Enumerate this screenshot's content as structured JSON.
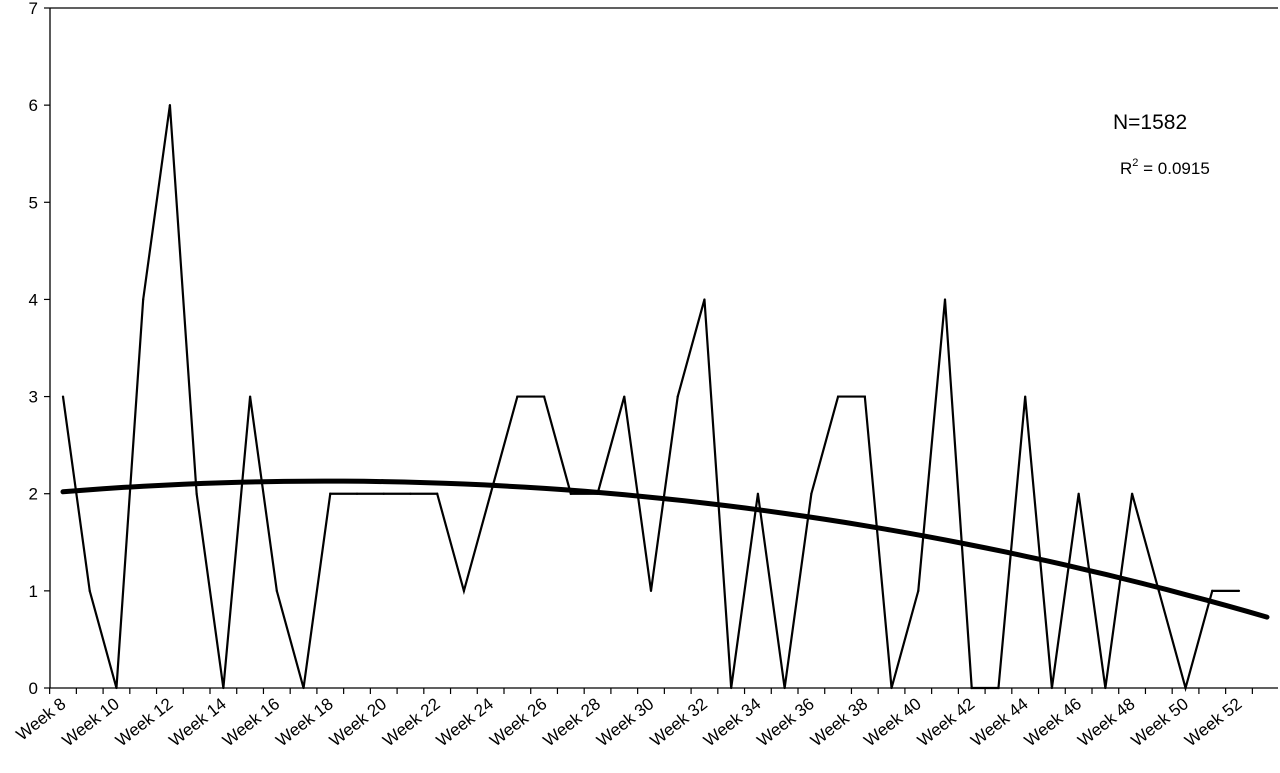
{
  "chart_data": {
    "type": "line",
    "title": "",
    "xlabel": "",
    "ylabel": "",
    "ylim": [
      0,
      7
    ],
    "yticks": [
      0,
      1,
      2,
      3,
      4,
      5,
      6,
      7
    ],
    "grid": false,
    "x": [
      "Week 8",
      "Week 9",
      "Week 10",
      "Week 11",
      "Week 12",
      "Week 13",
      "Week 14",
      "Week 15",
      "Week 16",
      "Week 17",
      "Week 18",
      "Week 19",
      "Week 20",
      "Week 21",
      "Week 22",
      "Week 23",
      "Week 24",
      "Week 25",
      "Week 26",
      "Week 27",
      "Week 28",
      "Week 29",
      "Week 30",
      "Week 31",
      "Week 32",
      "Week 33",
      "Week 34",
      "Week 35",
      "Week 36",
      "Week 37",
      "Week 38",
      "Week 39",
      "Week 40",
      "Week 41",
      "Week 42",
      "Week 43",
      "Week 44",
      "Week 45",
      "Week 46",
      "Week 47",
      "Week 48",
      "Week 49",
      "Week 50",
      "Week 51",
      "Week 52"
    ],
    "xtick_labels": [
      "Week 8",
      "Week 10",
      "Week 12",
      "Week 14",
      "Week 16",
      "Week 18",
      "Week 20",
      "Week 22",
      "Week 24",
      "Week 26",
      "Week 28",
      "Week 30",
      "Week 32",
      "Week 34",
      "Week 36",
      "Week 38",
      "Week 40",
      "Week 42",
      "Week 44",
      "Week 46",
      "Week 48",
      "Week 50",
      "Week 52"
    ],
    "series": [
      {
        "values": [
          3,
          1,
          0,
          4,
          6,
          2,
          0,
          3,
          1,
          0,
          2,
          2,
          2,
          2,
          2,
          1,
          2,
          3,
          3,
          2,
          2,
          3,
          1,
          3,
          4,
          0,
          2,
          0,
          2,
          3,
          3,
          0,
          1,
          4,
          0,
          0,
          3,
          0,
          2,
          0,
          2,
          1,
          0,
          1,
          1
        ]
      }
    ],
    "trendline": {
      "type": "polynomial",
      "r_squared": "0.0915",
      "start": 2.02,
      "end": 0.73
    },
    "annotations": {
      "n_label": "N=1582",
      "r2_prefix": "R",
      "r2_exp": "2",
      "r2_suffix": " = 0.0915"
    }
  }
}
